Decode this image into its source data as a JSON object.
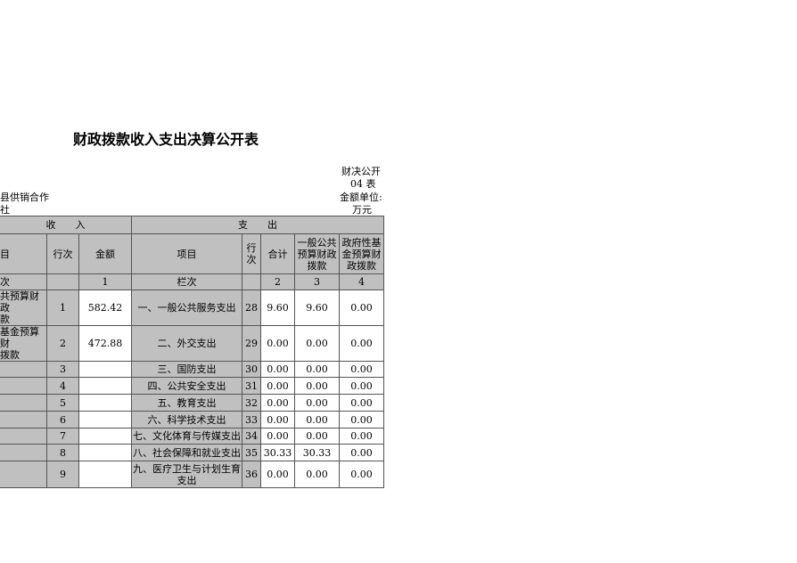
{
  "title": "财政拨款收入支出决算公开表",
  "form_code_1": "财决公开",
  "form_code_2": "04 表",
  "unit_label": "金额单位:",
  "unit": "万元",
  "org_1": "县供销合作",
  "org_2": "社",
  "header": {
    "income": "收　　入",
    "expense": "支　　出",
    "item": "目",
    "row_no": "行次",
    "amount": "金额",
    "exp_item": "项目",
    "exp_row_no": "行\n次",
    "total": "合计",
    "general": "一般公共预算财政拨款",
    "fund": "政府性基金预算财政拨款"
  },
  "col_row": {
    "label": "次",
    "c1": "1",
    "label2": "栏次",
    "c2": "2",
    "c3": "3",
    "c4": "4"
  },
  "rows": [
    {
      "in_item": "共预算财政\n款",
      "in_no": "1",
      "in_amt": "582.42",
      "ex_item": "一、一般公共服务支出",
      "ex_no": "28",
      "total": "9.60",
      "general": "9.60",
      "fund": "0.00"
    },
    {
      "in_item": "基金预算财\n拨款",
      "in_no": "2",
      "in_amt": "472.88",
      "ex_item": "二、外交支出",
      "ex_no": "29",
      "total": "0.00",
      "general": "0.00",
      "fund": "0.00"
    },
    {
      "in_item": "",
      "in_no": "3",
      "in_amt": "",
      "ex_item": "三、国防支出",
      "ex_no": "30",
      "total": "0.00",
      "general": "0.00",
      "fund": "0.00"
    },
    {
      "in_item": "",
      "in_no": "4",
      "in_amt": "",
      "ex_item": "四、公共安全支出",
      "ex_no": "31",
      "total": "0.00",
      "general": "0.00",
      "fund": "0.00"
    },
    {
      "in_item": "",
      "in_no": "5",
      "in_amt": "",
      "ex_item": "五、教育支出",
      "ex_no": "32",
      "total": "0.00",
      "general": "0.00",
      "fund": "0.00"
    },
    {
      "in_item": "",
      "in_no": "6",
      "in_amt": "",
      "ex_item": "六、科学技术支出",
      "ex_no": "33",
      "total": "0.00",
      "general": "0.00",
      "fund": "0.00"
    },
    {
      "in_item": "",
      "in_no": "7",
      "in_amt": "",
      "ex_item": "七、文化体育与传媒支出",
      "ex_no": "34",
      "total": "0.00",
      "general": "0.00",
      "fund": "0.00"
    },
    {
      "in_item": "",
      "in_no": "8",
      "in_amt": "",
      "ex_item": "八、社会保障和就业支出",
      "ex_no": "35",
      "total": "30.33",
      "general": "30.33",
      "fund": "0.00"
    },
    {
      "in_item": "",
      "in_no": "9",
      "in_amt": "",
      "ex_item": "九、医疗卫生与计划生育\n支出",
      "ex_no": "36",
      "total": "0.00",
      "general": "0.00",
      "fund": "0.00"
    }
  ]
}
